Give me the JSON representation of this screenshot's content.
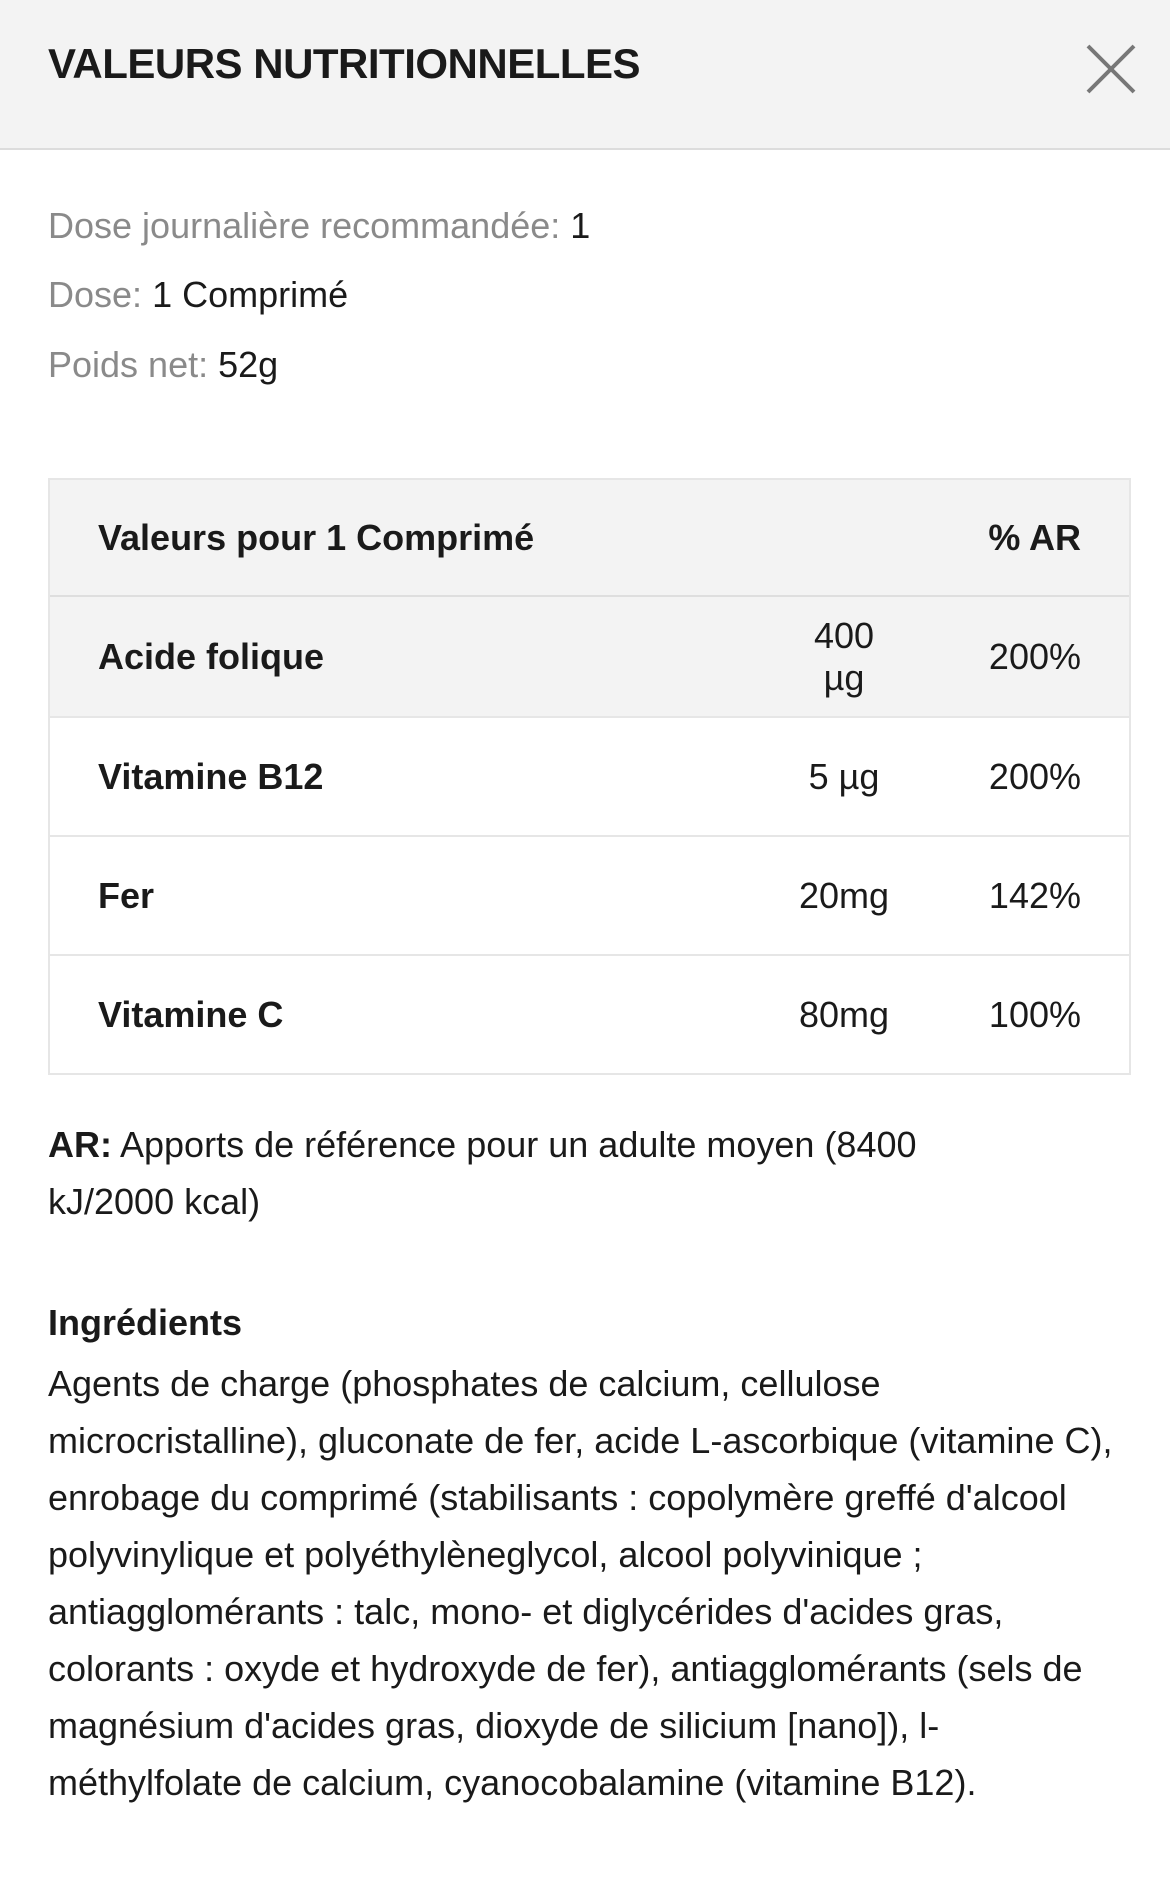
{
  "header": {
    "title": "VALEURS NUTRITIONNELLES",
    "close_icon": "close-icon"
  },
  "info": [
    {
      "label": "Dose journalière recommandée:",
      "value": "1"
    },
    {
      "label": "Dose:",
      "value": "1 Comprimé"
    },
    {
      "label": "Poids net:",
      "value": "52g"
    }
  ],
  "table": {
    "header": {
      "label": "Valeurs pour 1 Comprimé",
      "percent": "% AR"
    },
    "rows": [
      {
        "name": "Acide folique",
        "amount": "400 µg",
        "percent": "200%"
      },
      {
        "name": "Vitamine B12",
        "amount": "5 µg",
        "percent": "200%"
      },
      {
        "name": "Fer",
        "amount": "20mg",
        "percent": "142%"
      },
      {
        "name": "Vitamine C",
        "amount": "80mg",
        "percent": "100%"
      }
    ]
  },
  "note": {
    "label": "AR:",
    "text": "Apports de référence pour un adulte moyen (8400 kJ/2000 kcal)"
  },
  "ingredients": {
    "heading": "Ingrédients",
    "text": "Agents de charge (phosphates de calcium, cellulose microcristalline), gluconate de fer, acide L-ascorbique (vitamine C), enrobage du comprimé (stabilisants : copolymère greffé d'alcool polyvinylique et polyéthylèneglycol, alcool polyvinique ; antiagglomérants : talc, mono- et diglycérides d'acides gras, colorants : oxyde et hydroxyde de fer), antiagglomérants (sels de magnésium d'acides gras, dioxyde de silicium [nano]), l-méthylfolate de calcium, cyanocobalamine (vitamine B12)."
  },
  "colors": {
    "header_bg": "#f3f3f3",
    "label_gray": "#8a8a8a",
    "text": "#1a1a1a"
  }
}
